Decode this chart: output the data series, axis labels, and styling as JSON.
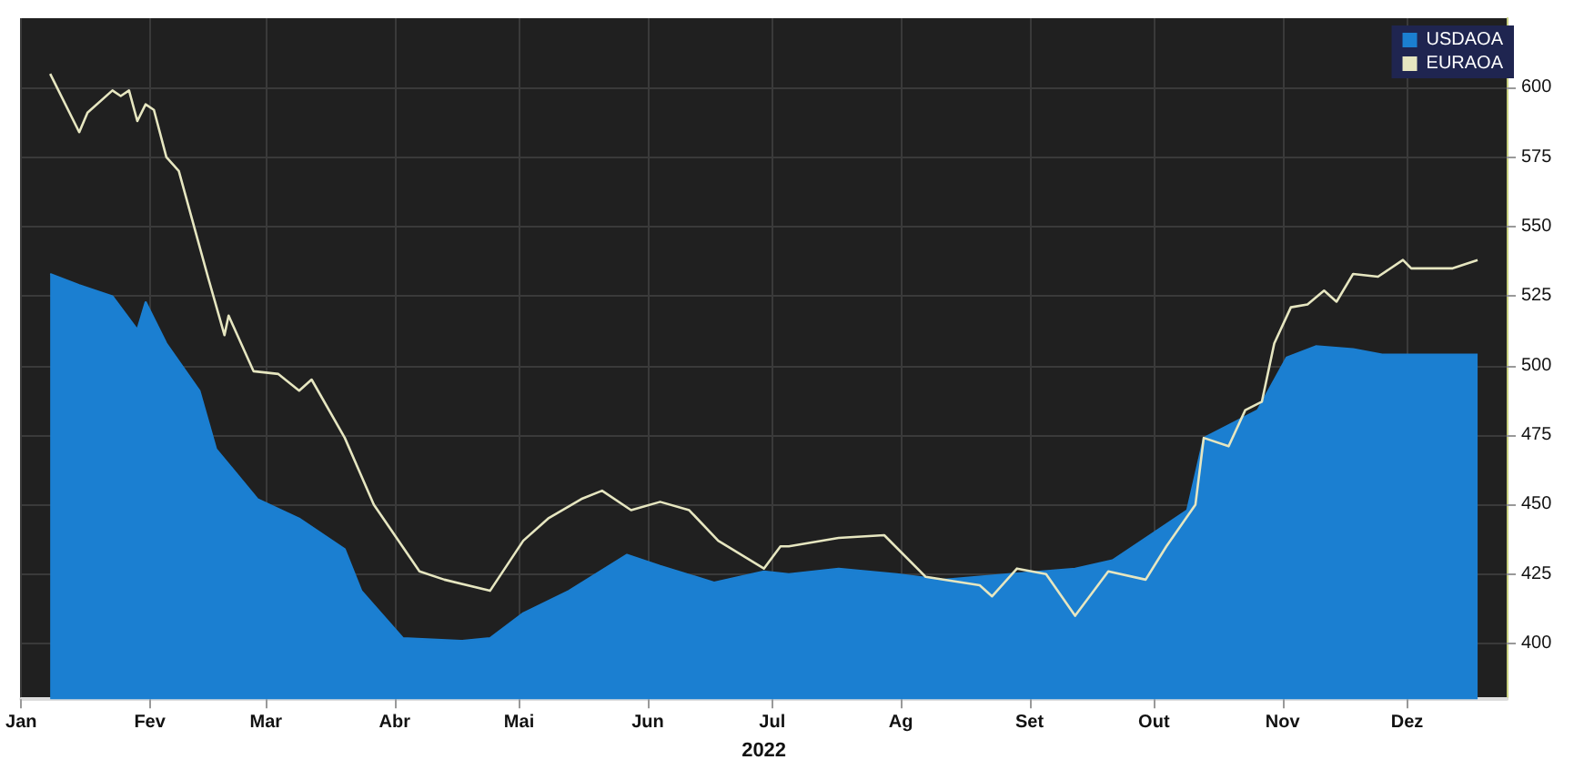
{
  "chart_data": {
    "type": "line",
    "xlabel": "2022",
    "xlim": [
      "2022-01-01",
      "2022-12-25"
    ],
    "xticks": [
      {
        "value": "2022-01-01",
        "label": "Jan"
      },
      {
        "value": "2022-02-01",
        "label": "Fev"
      },
      {
        "value": "2022-03-01",
        "label": "Mar"
      },
      {
        "value": "2022-04-01",
        "label": "Abr"
      },
      {
        "value": "2022-05-01",
        "label": "Mai"
      },
      {
        "value": "2022-06-01",
        "label": "Jun"
      },
      {
        "value": "2022-07-01",
        "label": "Jul"
      },
      {
        "value": "2022-08-01",
        "label": "Ag"
      },
      {
        "value": "2022-09-01",
        "label": "Set"
      },
      {
        "value": "2022-10-01",
        "label": "Out"
      },
      {
        "value": "2022-11-01",
        "label": "Nov"
      },
      {
        "value": "2022-12-01",
        "label": "Dez"
      }
    ],
    "ylim": [
      380,
      625
    ],
    "yticks": [
      400,
      425,
      450,
      475,
      500,
      525,
      550,
      575,
      600
    ],
    "grid": true,
    "legend": "top right",
    "marker": "none",
    "series": [
      {
        "name": "USDAOA",
        "type": "area",
        "color": "#1b7fd1",
        "x": [
          "2022-01-08",
          "2022-01-15",
          "2022-01-23",
          "2022-01-29",
          "2022-01-31",
          "2022-02-05",
          "2022-02-13",
          "2022-02-17",
          "2022-02-27",
          "2022-03-09",
          "2022-03-20",
          "2022-03-24",
          "2022-04-03",
          "2022-04-17",
          "2022-04-24",
          "2022-05-02",
          "2022-05-13",
          "2022-05-27",
          "2022-06-04",
          "2022-06-17",
          "2022-06-29",
          "2022-07-05",
          "2022-07-17",
          "2022-07-31",
          "2022-08-11",
          "2022-08-27",
          "2022-09-12",
          "2022-09-21",
          "2022-10-01",
          "2022-10-09",
          "2022-10-13",
          "2022-10-26",
          "2022-11-02",
          "2022-11-09",
          "2022-11-18",
          "2022-11-25",
          "2022-12-18"
        ],
        "values": [
          533,
          529,
          525,
          513,
          523,
          508,
          491,
          470,
          452,
          445,
          434,
          419,
          402,
          401,
          402,
          411,
          419,
          432,
          428,
          422,
          426,
          425,
          427,
          425,
          423,
          425,
          427,
          430,
          440,
          448,
          474,
          484,
          503,
          507,
          506,
          504,
          504
        ]
      },
      {
        "name": "EURAOA",
        "color": "#e6e6c0",
        "x": [
          "2022-01-08",
          "2022-01-15",
          "2022-01-17",
          "2022-01-23",
          "2022-01-25",
          "2022-01-27",
          "2022-01-29",
          "2022-01-31",
          "2022-02-02",
          "2022-02-05",
          "2022-02-08",
          "2022-02-15",
          "2022-02-19",
          "2022-02-20",
          "2022-02-26",
          "2022-03-04",
          "2022-03-09",
          "2022-03-12",
          "2022-03-20",
          "2022-03-27",
          "2022-04-07",
          "2022-04-13",
          "2022-04-24",
          "2022-04-28",
          "2022-05-02",
          "2022-05-08",
          "2022-05-16",
          "2022-05-21",
          "2022-05-28",
          "2022-06-04",
          "2022-06-11",
          "2022-06-18",
          "2022-06-29",
          "2022-07-03",
          "2022-07-05",
          "2022-07-17",
          "2022-07-28",
          "2022-08-07",
          "2022-08-20",
          "2022-08-23",
          "2022-08-29",
          "2022-09-05",
          "2022-09-12",
          "2022-09-20",
          "2022-09-29",
          "2022-10-04",
          "2022-10-11",
          "2022-10-13",
          "2022-10-19",
          "2022-10-23",
          "2022-10-27",
          "2022-10-30",
          "2022-11-03",
          "2022-11-07",
          "2022-11-11",
          "2022-11-14",
          "2022-11-18",
          "2022-11-24",
          "2022-11-30",
          "2022-12-02",
          "2022-12-12",
          "2022-12-18"
        ],
        "values": [
          605,
          584,
          591,
          599,
          597,
          599,
          588,
          594,
          592,
          575,
          570,
          532,
          511,
          518,
          498,
          497,
          491,
          495,
          474,
          450,
          426,
          423,
          419,
          428,
          437,
          445,
          452,
          455,
          448,
          451,
          448,
          437,
          427,
          435,
          435,
          438,
          439,
          424,
          421,
          417,
          427,
          425,
          410,
          426,
          423,
          435,
          450,
          474,
          471,
          484,
          487,
          508,
          521,
          522,
          527,
          523,
          533,
          532,
          538,
          535,
          535,
          538
        ]
      }
    ]
  }
}
